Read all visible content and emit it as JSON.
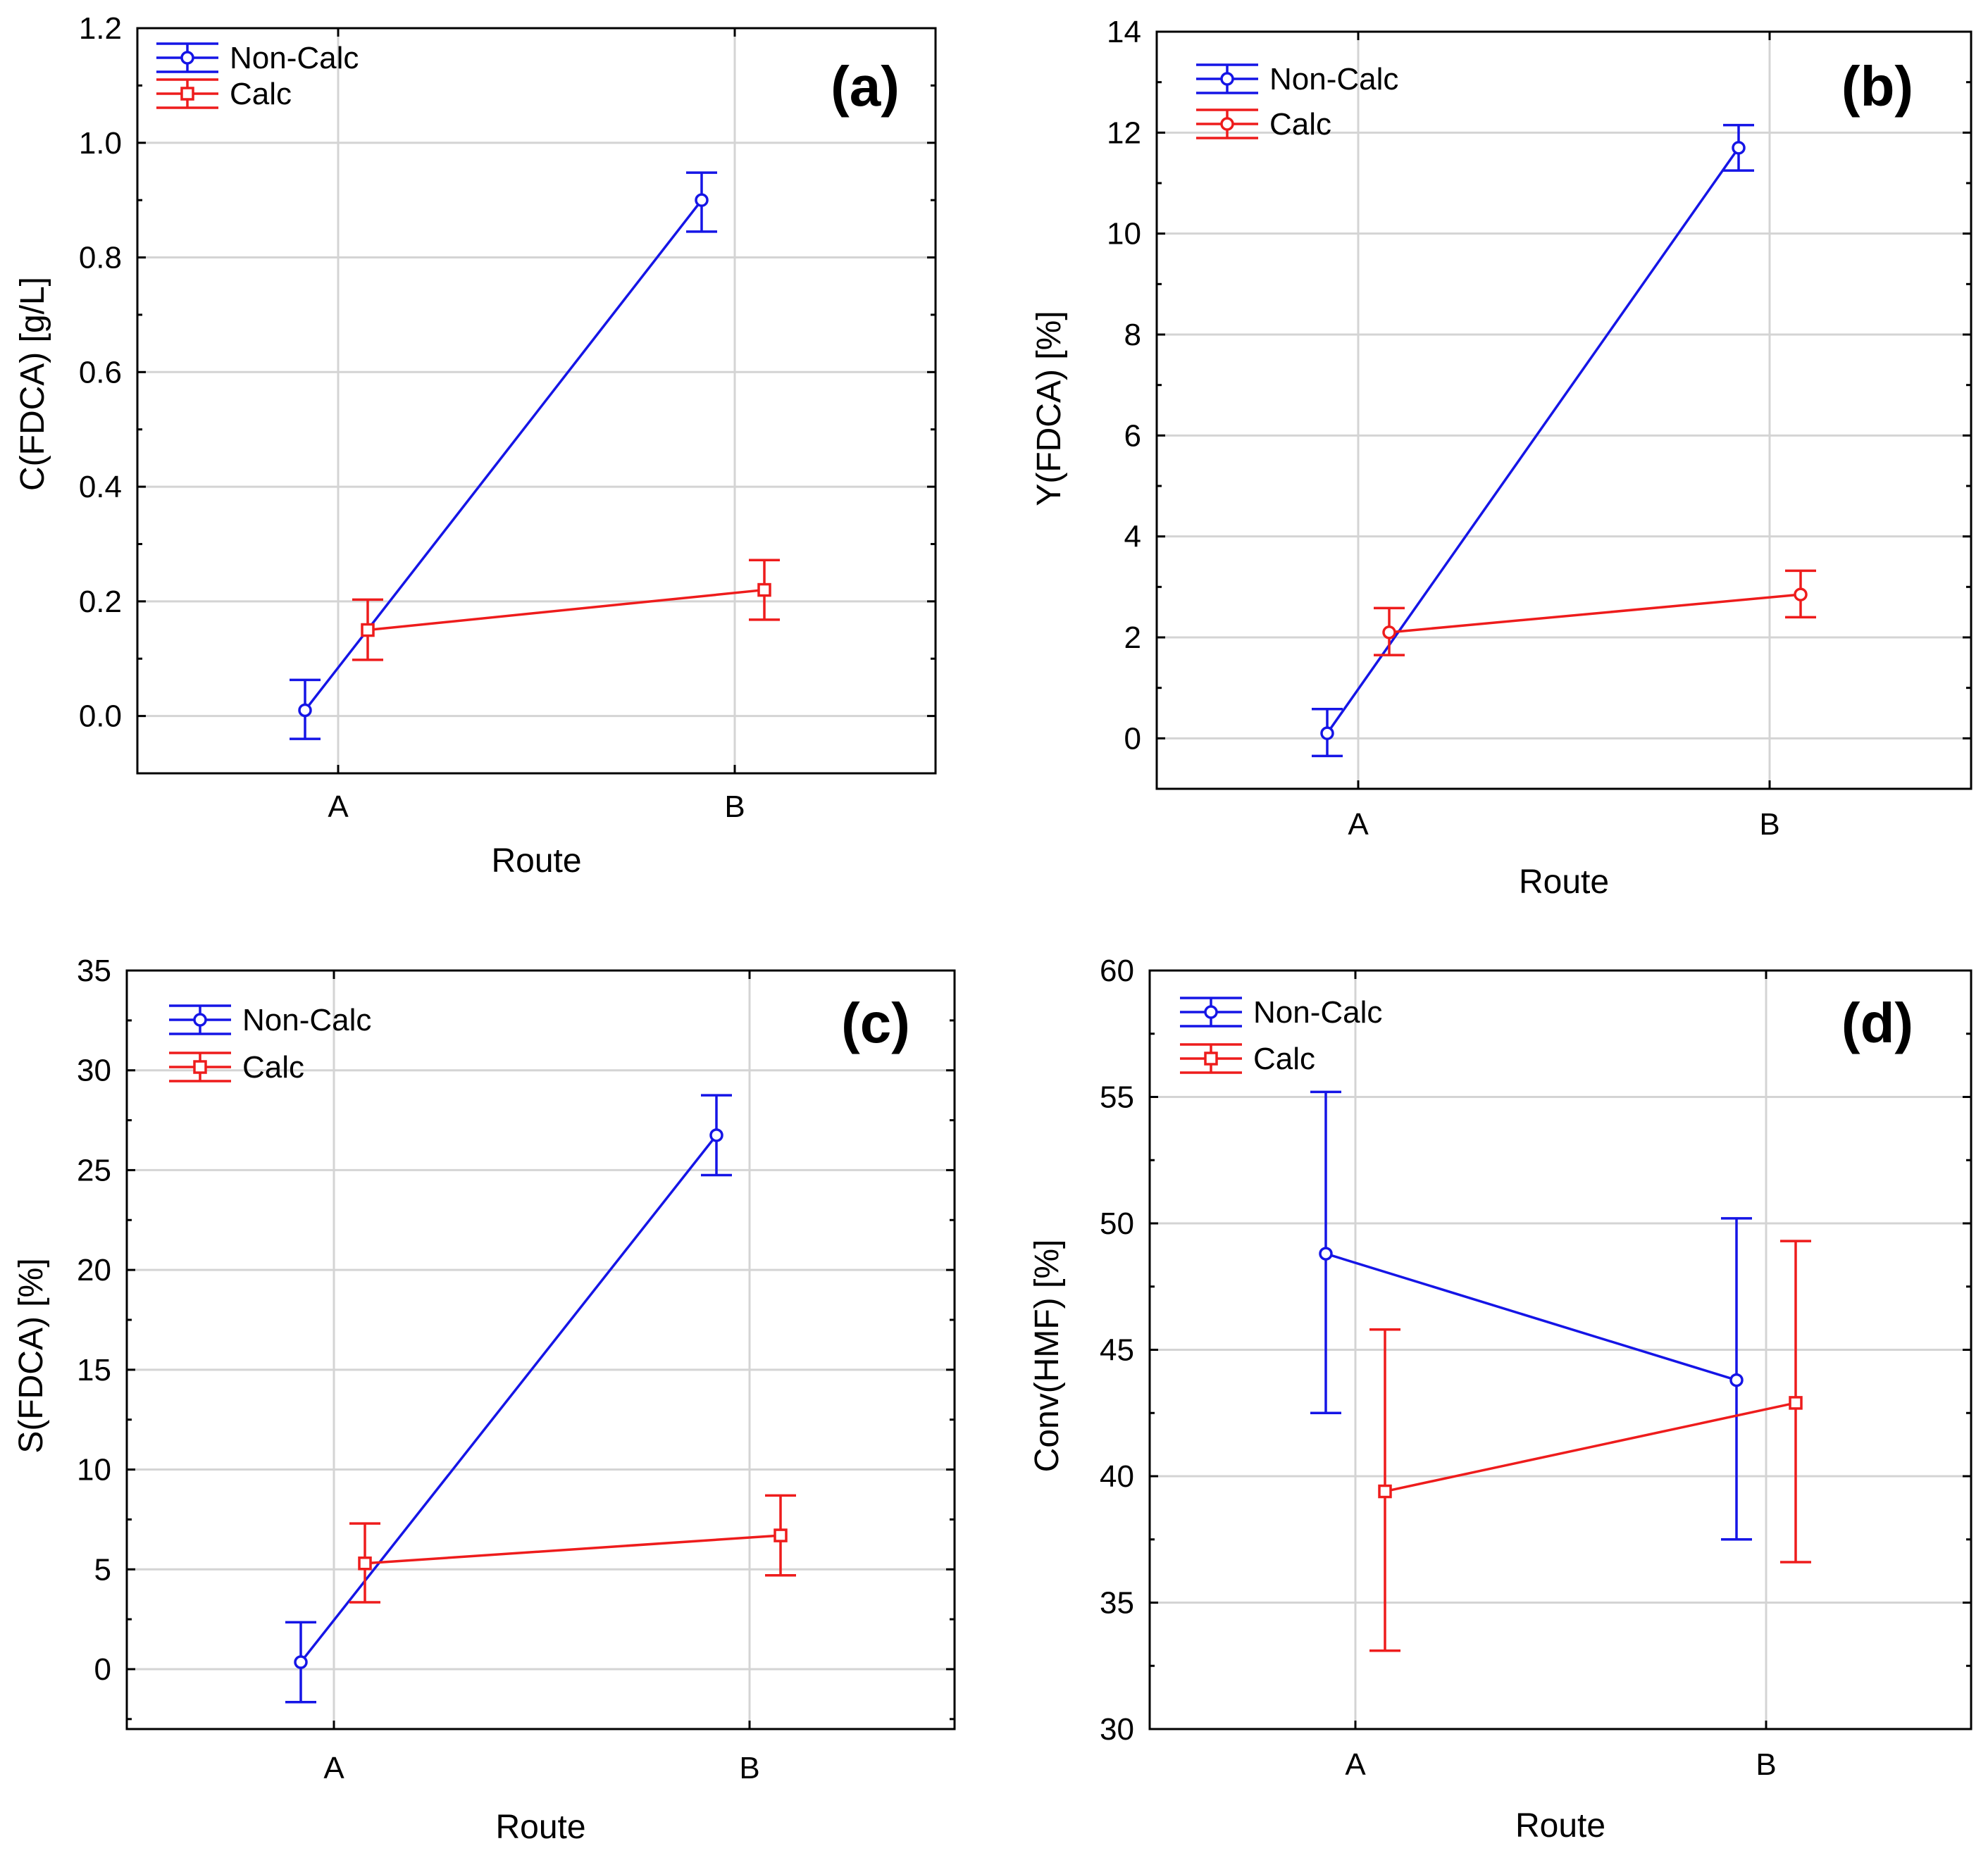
{
  "colors": {
    "non_calc": "#1515e6",
    "calc": "#ee1c1c"
  },
  "chart_data": [
    {
      "id": "a",
      "panel_label": "(a)",
      "type": "line",
      "xlabel": "Route",
      "ylabel": "C(FDCA) [g/L]",
      "categories": [
        "A",
        "B"
      ],
      "ylim": [
        -0.1,
        1.2
      ],
      "yticks": [
        0.0,
        0.2,
        0.4,
        0.6,
        0.8,
        1.0,
        1.2
      ],
      "ytick_labels": [
        "0.0",
        "0.2",
        "0.4",
        "0.6",
        "0.8",
        "1.0",
        "1.2"
      ],
      "legend": "top-left",
      "series": [
        {
          "name": "Non-Calc",
          "marker": "circle",
          "values": [
            0.01,
            0.9
          ],
          "lower": [
            -0.04,
            0.845
          ],
          "upper": [
            0.063,
            0.948
          ]
        },
        {
          "name": "Calc",
          "marker": "square",
          "values": [
            0.15,
            0.22
          ],
          "lower": [
            0.098,
            0.168
          ],
          "upper": [
            0.203,
            0.272
          ]
        }
      ]
    },
    {
      "id": "b",
      "panel_label": "(b)",
      "type": "line",
      "xlabel": "Route",
      "ylabel": "Y(FDCA) [%]",
      "categories": [
        "A",
        "B"
      ],
      "ylim": [
        -1,
        14
      ],
      "yticks": [
        0,
        2,
        4,
        6,
        8,
        10,
        12,
        14
      ],
      "ytick_labels": [
        "0",
        "2",
        "4",
        "6",
        "8",
        "10",
        "12",
        "14"
      ],
      "legend": "top-left",
      "series": [
        {
          "name": "Non-Calc",
          "marker": "circle",
          "values": [
            0.1,
            11.7
          ],
          "lower": [
            -0.35,
            11.25
          ],
          "upper": [
            0.58,
            12.15
          ]
        },
        {
          "name": "Calc",
          "marker": "circle",
          "values": [
            2.1,
            2.85
          ],
          "lower": [
            1.65,
            2.4
          ],
          "upper": [
            2.58,
            3.32
          ]
        }
      ]
    },
    {
      "id": "c",
      "panel_label": "(c)",
      "type": "line",
      "xlabel": "Route",
      "ylabel": "S(FDCA) [%]",
      "categories": [
        "A",
        "B"
      ],
      "ylim": [
        -3,
        35
      ],
      "yticks": [
        0,
        5,
        10,
        15,
        20,
        25,
        30,
        35
      ],
      "ytick_labels": [
        "0",
        "5",
        "10",
        "15",
        "20",
        "25",
        "30",
        "35"
      ],
      "legend": "top-left",
      "series": [
        {
          "name": "Non-Calc",
          "marker": "circle",
          "values": [
            0.35,
            26.75
          ],
          "lower": [
            -1.65,
            24.75
          ],
          "upper": [
            2.35,
            28.75
          ]
        },
        {
          "name": "Calc",
          "marker": "square",
          "values": [
            5.3,
            6.7
          ],
          "lower": [
            3.35,
            4.7
          ],
          "upper": [
            7.3,
            8.7
          ]
        }
      ]
    },
    {
      "id": "d",
      "panel_label": "(d)",
      "type": "line",
      "xlabel": "Route",
      "ylabel": "Conv(HMF) [%]",
      "categories": [
        "A",
        "B"
      ],
      "ylim": [
        30,
        60
      ],
      "yticks": [
        30,
        35,
        40,
        45,
        50,
        55,
        60
      ],
      "ytick_labels": [
        "30",
        "35",
        "40",
        "45",
        "50",
        "55",
        "60"
      ],
      "legend": "top-left",
      "series": [
        {
          "name": "Non-Calc",
          "marker": "circle",
          "values": [
            48.8,
            43.8
          ],
          "lower": [
            42.5,
            37.5
          ],
          "upper": [
            55.2,
            50.2
          ]
        },
        {
          "name": "Calc",
          "marker": "square",
          "values": [
            39.4,
            42.9
          ],
          "lower": [
            33.1,
            36.6
          ],
          "upper": [
            45.8,
            49.3
          ]
        }
      ]
    }
  ]
}
